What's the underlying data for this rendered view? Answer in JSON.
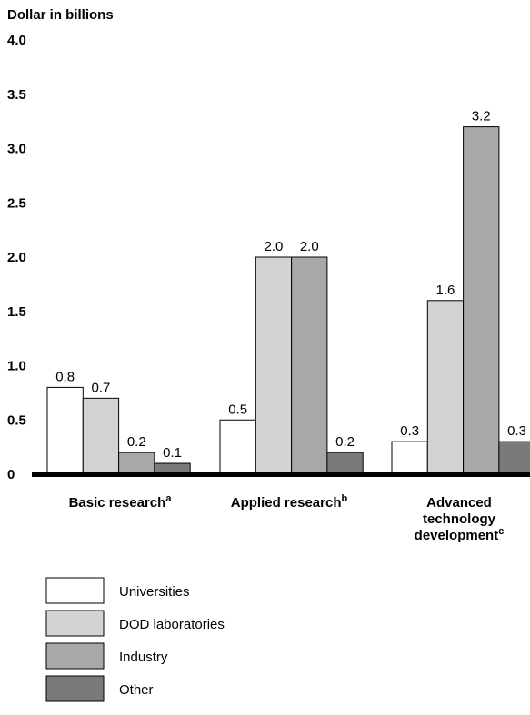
{
  "chart_data": {
    "type": "bar",
    "ylabel": "Dollar in billions",
    "ylim": [
      0,
      4.0
    ],
    "yticks": [
      "0",
      "0.5",
      "1.0",
      "1.5",
      "2.0",
      "2.5",
      "3.0",
      "3.5",
      "4.0"
    ],
    "categories": [
      {
        "lines": [
          "Basic research"
        ],
        "superscript": "a"
      },
      {
        "lines": [
          "Applied research"
        ],
        "superscript": "b"
      },
      {
        "lines": [
          "Advanced",
          "technology",
          "development"
        ],
        "superscript": "c"
      }
    ],
    "series": [
      {
        "name": "Universities",
        "color": "#ffffff",
        "values": [
          0.8,
          0.5,
          0.3
        ],
        "labels": [
          "0.8",
          "0.5",
          "0.3"
        ]
      },
      {
        "name": "DOD laboratories",
        "color": "#d3d3d3",
        "values": [
          0.7,
          2.0,
          1.6
        ],
        "labels": [
          "0.7",
          "2.0",
          "1.6"
        ]
      },
      {
        "name": "Industry",
        "color": "#a8a8a8",
        "values": [
          0.2,
          2.0,
          3.2
        ],
        "labels": [
          "0.2",
          "2.0",
          "3.2"
        ]
      },
      {
        "name": "Other",
        "color": "#7a7a7a",
        "values": [
          0.1,
          0.2,
          0.3
        ],
        "labels": [
          "0.1",
          "0.2",
          "0.3"
        ]
      }
    ],
    "legend": "bottom-left",
    "grid": false
  }
}
